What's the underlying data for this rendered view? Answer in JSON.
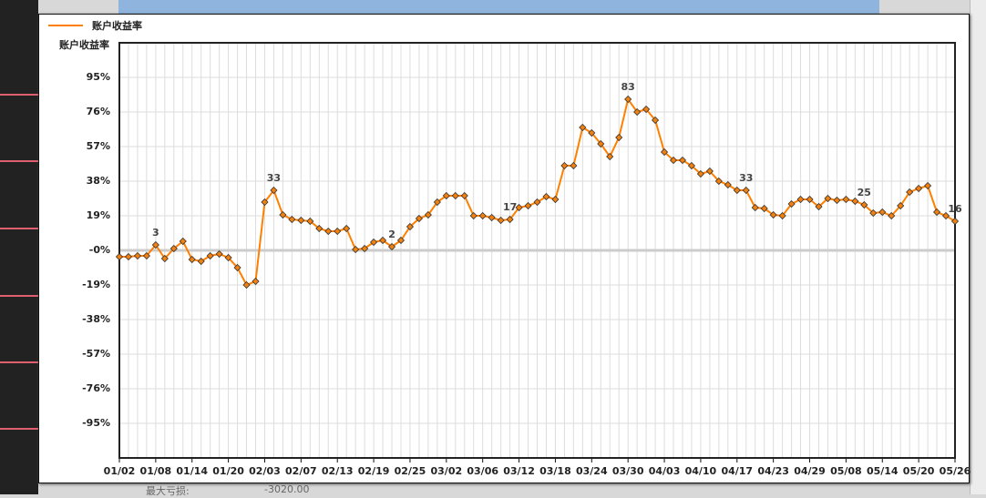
{
  "background": {
    "loss_label": "最大亏损:",
    "loss_value": "-3020.00"
  },
  "chart_data": {
    "type": "line",
    "ylabel": "账户收益率",
    "categories": [
      "01/02",
      null,
      null,
      null,
      "01/08",
      null,
      null,
      null,
      "01/14",
      null,
      null,
      null,
      "01/20",
      null,
      null,
      null,
      "02/03",
      null,
      null,
      null,
      "02/07",
      null,
      null,
      null,
      "02/13",
      null,
      null,
      null,
      "02/19",
      null,
      null,
      null,
      "02/25",
      null,
      null,
      null,
      "03/02",
      null,
      null,
      null,
      "03/06",
      null,
      null,
      null,
      "03/12",
      null,
      null,
      null,
      "03/18",
      null,
      null,
      null,
      "03/24",
      null,
      null,
      null,
      "03/30",
      null,
      null,
      null,
      "04/03",
      null,
      null,
      null,
      "04/10",
      null,
      null,
      null,
      "04/17",
      null,
      null,
      null,
      "04/23",
      null,
      null,
      null,
      "04/29",
      null,
      null,
      null,
      "05/08",
      null,
      null,
      null,
      "05/14",
      null,
      null,
      null,
      "05/20",
      null,
      null,
      null,
      "05/26"
    ],
    "series": [
      {
        "name": "账户收益率",
        "color": "#ff8000",
        "marker_color": "#f08010",
        "values": [
          -3.5,
          -3.5,
          -3,
          -3,
          3,
          -4.5,
          1,
          5,
          -5,
          -6,
          -3,
          -2,
          -4,
          -9.5,
          -19,
          -17,
          26.5,
          33,
          19.5,
          17,
          16.5,
          16,
          12,
          10.5,
          10.5,
          12,
          0.5,
          1,
          4.5,
          5.5,
          2,
          5.5,
          13,
          17.5,
          19.5,
          26.5,
          30,
          30,
          30,
          19,
          19,
          18,
          16.5,
          17,
          23.5,
          24.5,
          26.5,
          29.5,
          28,
          46.5,
          46.5,
          67.5,
          64.5,
          58.5,
          51.5,
          62,
          83,
          76,
          77.5,
          71.5,
          54,
          49.5,
          49.5,
          46.5,
          42,
          43.5,
          38,
          36,
          33,
          33,
          23.5,
          23,
          19.5,
          19,
          25.5,
          28,
          28,
          24,
          28.5,
          27.5,
          28,
          27,
          25,
          20.5,
          21,
          19,
          24.5,
          32,
          34,
          35.5,
          21,
          19,
          16
        ],
        "value_labels": [
          null,
          null,
          null,
          null,
          "3",
          null,
          null,
          null,
          null,
          null,
          null,
          null,
          null,
          null,
          null,
          null,
          null,
          "33",
          null,
          null,
          null,
          null,
          null,
          null,
          null,
          null,
          null,
          null,
          null,
          null,
          "2",
          null,
          null,
          null,
          null,
          null,
          null,
          null,
          null,
          null,
          null,
          null,
          null,
          "17",
          null,
          null,
          null,
          null,
          null,
          null,
          null,
          null,
          null,
          null,
          null,
          null,
          "83",
          null,
          null,
          null,
          null,
          null,
          null,
          null,
          null,
          null,
          null,
          null,
          null,
          "33",
          null,
          null,
          null,
          null,
          null,
          null,
          null,
          null,
          null,
          null,
          null,
          null,
          "25",
          null,
          null,
          null,
          null,
          null,
          null,
          null,
          null,
          null,
          "16"
        ]
      }
    ],
    "ylim": [
      -114,
      114
    ],
    "yticks": [
      {
        "value": 95,
        "label": "95%"
      },
      {
        "value": 76,
        "label": "76%"
      },
      {
        "value": 57,
        "label": "57%"
      },
      {
        "value": 38,
        "label": "38%"
      },
      {
        "value": 19,
        "label": "19%"
      },
      {
        "value": 0,
        "label": "-0%"
      },
      {
        "value": -19,
        "label": "-19%"
      },
      {
        "value": -38,
        "label": "-38%"
      },
      {
        "value": -57,
        "label": "-57%"
      },
      {
        "value": -76,
        "label": "-76%"
      },
      {
        "value": -95,
        "label": "-95%"
      }
    ],
    "grid": true
  }
}
